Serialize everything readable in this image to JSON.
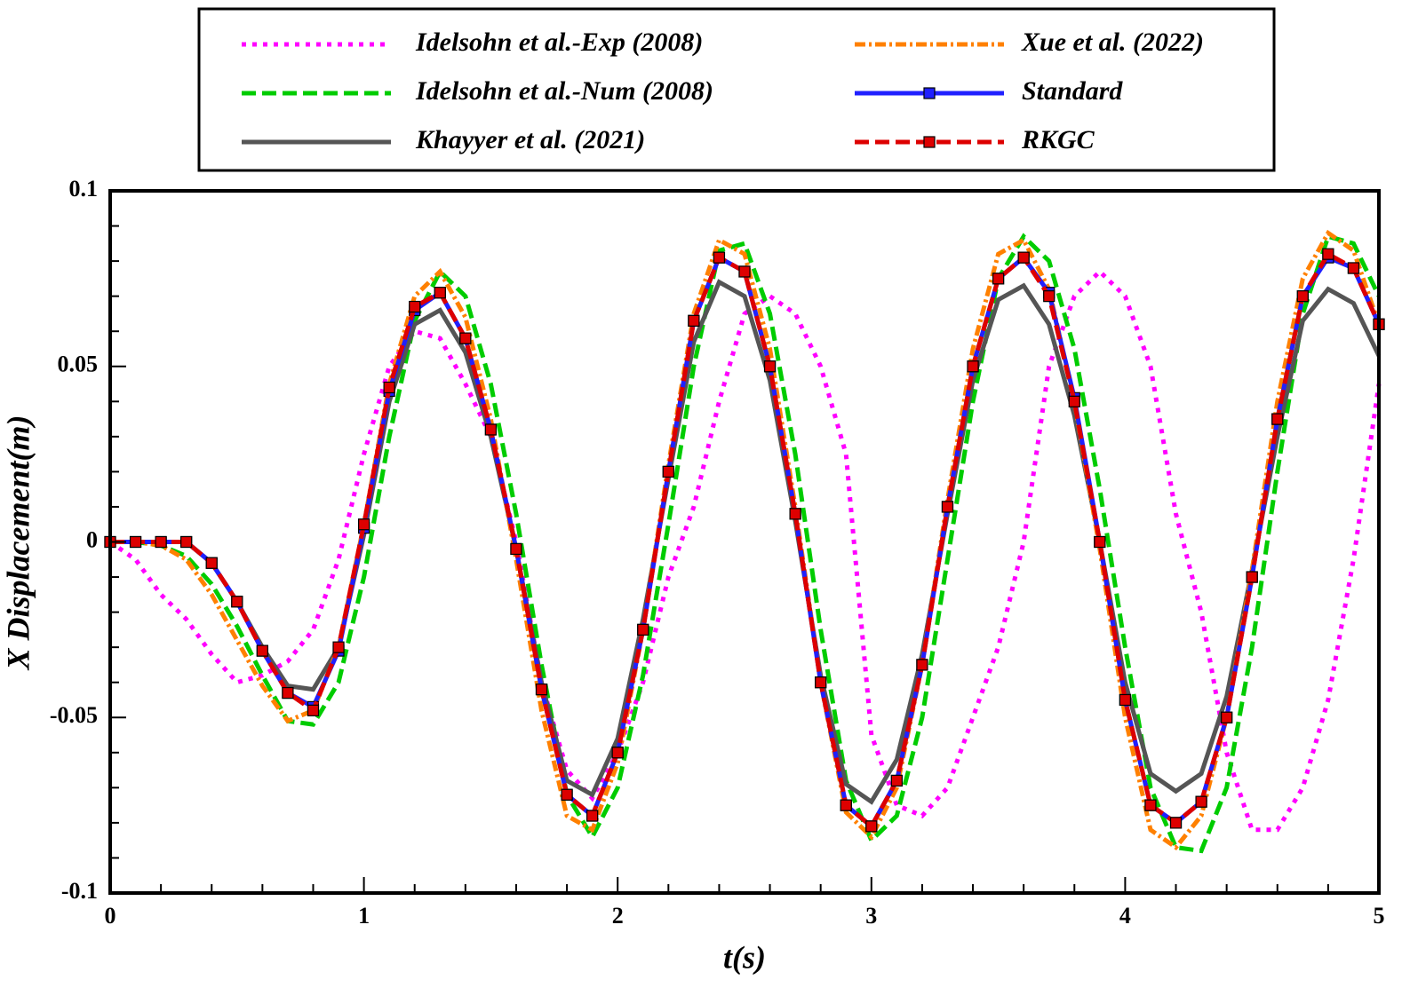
{
  "chart_data": {
    "type": "line",
    "xlabel": "t(s)",
    "ylabel": "X Displacement(m)",
    "xlim": [
      0,
      5
    ],
    "ylim": [
      -0.1,
      0.1
    ],
    "xticks": [
      0,
      1,
      2,
      3,
      4,
      5
    ],
    "yticks": [
      -0.1,
      -0.05,
      0,
      0.05,
      0.1
    ],
    "x": [
      0,
      0.1,
      0.2,
      0.3,
      0.4,
      0.5,
      0.6,
      0.7,
      0.8,
      0.9,
      1,
      1.1,
      1.2,
      1.3,
      1.4,
      1.5,
      1.6,
      1.7,
      1.8,
      1.9,
      2,
      2.1,
      2.2,
      2.3,
      2.4,
      2.5,
      2.6,
      2.7,
      2.8,
      2.9,
      3,
      3.1,
      3.2,
      3.3,
      3.4,
      3.5,
      3.6,
      3.7,
      3.8,
      3.9,
      4,
      4.1,
      4.2,
      4.3,
      4.4,
      4.5,
      4.6,
      4.7,
      4.8,
      4.9,
      5
    ],
    "series": [
      {
        "name": "Idelsohn et al.-Exp (2008)",
        "color": "#ff00ff",
        "style": "dotted",
        "values": [
          0,
          -0.005,
          -0.015,
          -0.022,
          -0.032,
          -0.04,
          -0.038,
          -0.034,
          -0.025,
          -0.005,
          0.025,
          0.05,
          0.06,
          0.058,
          0.045,
          0.03,
          0,
          -0.04,
          -0.065,
          -0.073,
          -0.06,
          -0.04,
          -0.01,
          0.01,
          0.04,
          0.065,
          0.07,
          0.065,
          0.05,
          0.025,
          -0.055,
          -0.075,
          -0.078,
          -0.07,
          -0.05,
          -0.03,
          0,
          0.05,
          0.07,
          0.077,
          0.07,
          0.05,
          0.008,
          -0.02,
          -0.06,
          -0.082,
          -0.082,
          -0.07,
          -0.045,
          -0.005,
          0.045
        ]
      },
      {
        "name": "Idelsohn et al.-Num (2008)",
        "color": "#00cc00",
        "style": "dashed",
        "values": [
          0,
          0,
          -0.001,
          -0.004,
          -0.012,
          -0.024,
          -0.038,
          -0.051,
          -0.052,
          -0.04,
          -0.01,
          0.03,
          0.063,
          0.077,
          0.07,
          0.045,
          0.008,
          -0.035,
          -0.072,
          -0.084,
          -0.07,
          -0.038,
          0.005,
          0.05,
          0.083,
          0.085,
          0.065,
          0.025,
          -0.025,
          -0.068,
          -0.085,
          -0.078,
          -0.05,
          -0.005,
          0.04,
          0.075,
          0.087,
          0.08,
          0.055,
          0.015,
          -0.03,
          -0.07,
          -0.087,
          -0.088,
          -0.07,
          -0.03,
          0.02,
          0.065,
          0.087,
          0.085,
          0.07
        ]
      },
      {
        "name": "Khayyer et al. (2021)",
        "color": "#555555",
        "style": "solid",
        "values": [
          0,
          0,
          0,
          0,
          -0.006,
          -0.017,
          -0.03,
          -0.041,
          -0.042,
          -0.03,
          0.002,
          0.04,
          0.062,
          0.066,
          0.054,
          0.03,
          -0.002,
          -0.04,
          -0.068,
          -0.072,
          -0.056,
          -0.022,
          0.018,
          0.057,
          0.074,
          0.07,
          0.046,
          0.006,
          -0.038,
          -0.069,
          -0.074,
          -0.062,
          -0.032,
          0.008,
          0.046,
          0.069,
          0.073,
          0.062,
          0.036,
          0,
          -0.04,
          -0.066,
          -0.071,
          -0.066,
          -0.044,
          -0.008,
          0.03,
          0.063,
          0.072,
          0.068,
          0.053
        ]
      },
      {
        "name": "Xue et al. (2022)",
        "color": "#ff8000",
        "style": "dashdot",
        "values": [
          0,
          0,
          -0.001,
          -0.005,
          -0.015,
          -0.028,
          -0.041,
          -0.051,
          -0.048,
          -0.03,
          0.005,
          0.045,
          0.07,
          0.077,
          0.064,
          0.035,
          -0.005,
          -0.048,
          -0.078,
          -0.082,
          -0.063,
          -0.025,
          0.022,
          0.065,
          0.086,
          0.082,
          0.055,
          0.01,
          -0.04,
          -0.077,
          -0.084,
          -0.07,
          -0.035,
          0.012,
          0.055,
          0.082,
          0.086,
          0.072,
          0.04,
          -0.002,
          -0.05,
          -0.082,
          -0.087,
          -0.078,
          -0.05,
          -0.008,
          0.04,
          0.075,
          0.088,
          0.083,
          0.062
        ]
      },
      {
        "name": "Standard",
        "color": "#2020ff",
        "style": "solid",
        "marker": "square",
        "values": [
          0,
          0,
          0,
          0,
          -0.006,
          -0.017,
          -0.031,
          -0.043,
          -0.047,
          -0.031,
          0.004,
          0.043,
          0.066,
          0.071,
          0.058,
          0.032,
          -0.002,
          -0.042,
          -0.072,
          -0.078,
          -0.06,
          -0.025,
          0.02,
          0.063,
          0.081,
          0.077,
          0.05,
          0.008,
          -0.04,
          -0.075,
          -0.081,
          -0.068,
          -0.035,
          0.01,
          0.05,
          0.075,
          0.081,
          0.071,
          0.041,
          0,
          -0.045,
          -0.075,
          -0.08,
          -0.074,
          -0.05,
          -0.01,
          0.035,
          0.07,
          0.081,
          0.078,
          0.062
        ]
      },
      {
        "name": "RKGC",
        "color": "#dd0000",
        "style": "dashed",
        "marker": "square",
        "values": [
          0,
          0,
          0,
          0,
          -0.006,
          -0.017,
          -0.031,
          -0.043,
          -0.048,
          -0.03,
          0.005,
          0.044,
          0.067,
          0.071,
          0.058,
          0.032,
          -0.002,
          -0.042,
          -0.072,
          -0.078,
          -0.06,
          -0.025,
          0.02,
          0.063,
          0.081,
          0.077,
          0.05,
          0.008,
          -0.04,
          -0.075,
          -0.081,
          -0.068,
          -0.035,
          0.01,
          0.05,
          0.075,
          0.081,
          0.07,
          0.04,
          0,
          -0.045,
          -0.075,
          -0.08,
          -0.074,
          -0.05,
          -0.01,
          0.035,
          0.07,
          0.082,
          0.078,
          0.062
        ]
      }
    ]
  }
}
